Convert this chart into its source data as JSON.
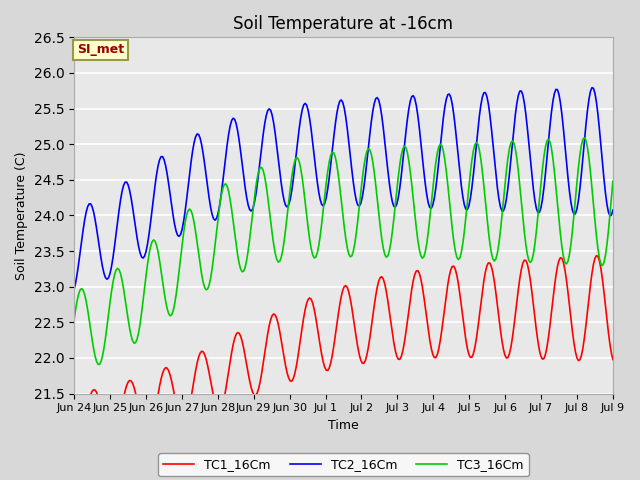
{
  "title": "Soil Temperature at -16cm",
  "xlabel": "Time",
  "ylabel": "Soil Temperature (C)",
  "ylim": [
    21.5,
    26.5
  ],
  "bg_color": "#d8d8d8",
  "plot_bg_color": "#e8e8e8",
  "grid_color": "#ffffff",
  "annotation_text": "SI_met",
  "annotation_bg": "#ffffcc",
  "annotation_border": "#999944",
  "annotation_text_color": "#990000",
  "colors": {
    "TC1_16Cm": "#ff0000",
    "TC2_16Cm": "#0000ff",
    "TC3_16Cm": "#00cc00"
  },
  "x_tick_labels": [
    "Jun 24",
    "Jun 25",
    "Jun 26",
    "Jun 27",
    "Jun 28",
    "Jun 29",
    "Jun 30",
    "Jul 1",
    "Jul 2",
    "Jul 3",
    "Jul 4",
    "Jul 5",
    "Jul 6",
    "Jul 7",
    "Jul 8",
    "Jul 9"
  ],
  "legend_labels": [
    "TC1_16Cm",
    "TC2_16Cm",
    "TC3_16Cm"
  ]
}
